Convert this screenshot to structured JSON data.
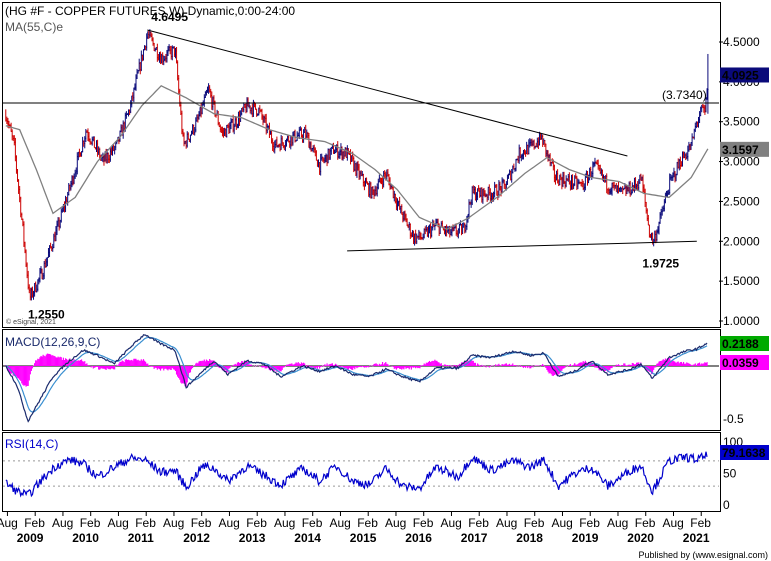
{
  "chart_data": [
    {
      "type": "line",
      "title": "(HG #F - COPPER FUTURES,W) Dynamic,0:00-24:00",
      "moving_average_label": "MA(55,C)e",
      "watermark": "© eSignal, 2021",
      "ylim": [
        0.95,
        4.95
      ],
      "y_ticks": [
        "4.5000",
        "4.0000",
        "3.5000",
        "3.0000",
        "2.5000",
        "2.0000",
        "1.5000",
        "1.0000"
      ],
      "y_tick_values": [
        4.5,
        4.0,
        3.5,
        3.0,
        2.5,
        2.0,
        1.5,
        1.0
      ],
      "last_price_label": "4.0925",
      "last_price": 4.0925,
      "ma_last_label": "3.1597",
      "ma_last": 3.1597,
      "horizontal_level_label": "(3.7340)",
      "horizontal_level": 3.734,
      "annotations": [
        {
          "text": "4.6495",
          "x": 2011.1,
          "y": 4.6495
        },
        {
          "text": "1.2550",
          "x": 2008.95,
          "y": 1.255
        },
        {
          "text": "1.9725",
          "x": 2020.2,
          "y": 1.9725
        }
      ],
      "trendlines": [
        {
          "name": "descending",
          "points": [
            [
              2011.1,
              4.65
            ],
            [
              2019.75,
              3.07
            ]
          ]
        },
        {
          "name": "support",
          "points": [
            [
              2014.7,
              1.88
            ],
            [
              2021.0,
              2.0
            ]
          ]
        }
      ],
      "price_anchors": [
        [
          2008.55,
          3.6
        ],
        [
          2008.7,
          3.2
        ],
        [
          2008.85,
          2.2
        ],
        [
          2008.98,
          1.28
        ],
        [
          2009.2,
          1.6
        ],
        [
          2009.5,
          2.2
        ],
        [
          2009.8,
          2.9
        ],
        [
          2010.0,
          3.4
        ],
        [
          2010.3,
          3.0
        ],
        [
          2010.55,
          3.2
        ],
        [
          2010.8,
          3.7
        ],
        [
          2011.1,
          4.6
        ],
        [
          2011.35,
          4.3
        ],
        [
          2011.6,
          4.4
        ],
        [
          2011.75,
          3.2
        ],
        [
          2012.0,
          3.5
        ],
        [
          2012.2,
          3.9
        ],
        [
          2012.45,
          3.35
        ],
        [
          2012.7,
          3.5
        ],
        [
          2012.9,
          3.7
        ],
        [
          2013.1,
          3.65
        ],
        [
          2013.4,
          3.2
        ],
        [
          2013.7,
          3.3
        ],
        [
          2013.95,
          3.35
        ],
        [
          2014.2,
          2.95
        ],
        [
          2014.45,
          3.15
        ],
        [
          2014.7,
          3.1
        ],
        [
          2014.95,
          2.8
        ],
        [
          2015.15,
          2.6
        ],
        [
          2015.4,
          2.85
        ],
        [
          2015.65,
          2.4
        ],
        [
          2015.9,
          2.05
        ],
        [
          2016.05,
          2.05
        ],
        [
          2016.3,
          2.2
        ],
        [
          2016.55,
          2.1
        ],
        [
          2016.8,
          2.15
        ],
        [
          2016.95,
          2.6
        ],
        [
          2017.3,
          2.6
        ],
        [
          2017.55,
          2.7
        ],
        [
          2017.8,
          3.1
        ],
        [
          2018.05,
          3.2
        ],
        [
          2018.2,
          3.3
        ],
        [
          2018.45,
          2.8
        ],
        [
          2018.7,
          2.75
        ],
        [
          2018.95,
          2.7
        ],
        [
          2019.15,
          2.95
        ],
        [
          2019.4,
          2.7
        ],
        [
          2019.65,
          2.6
        ],
        [
          2019.9,
          2.7
        ],
        [
          2020.0,
          2.8
        ],
        [
          2020.15,
          2.1
        ],
        [
          2020.22,
          2.0
        ],
        [
          2020.35,
          2.3
        ],
        [
          2020.5,
          2.7
        ],
        [
          2020.7,
          3.0
        ],
        [
          2020.9,
          3.2
        ],
        [
          2021.0,
          3.5
        ],
        [
          2021.1,
          3.65
        ],
        [
          2021.15,
          3.6
        ],
        [
          2021.2,
          4.09
        ]
      ],
      "ma_anchors": [
        [
          2008.55,
          3.45
        ],
        [
          2008.8,
          3.4
        ],
        [
          2009.1,
          2.9
        ],
        [
          2009.4,
          2.35
        ],
        [
          2009.8,
          2.55
        ],
        [
          2010.2,
          3.0
        ],
        [
          2010.6,
          3.3
        ],
        [
          2011.0,
          3.7
        ],
        [
          2011.35,
          3.95
        ],
        [
          2011.8,
          3.8
        ],
        [
          2012.3,
          3.6
        ],
        [
          2012.8,
          3.55
        ],
        [
          2013.3,
          3.4
        ],
        [
          2013.8,
          3.3
        ],
        [
          2014.3,
          3.25
        ],
        [
          2014.8,
          3.1
        ],
        [
          2015.2,
          2.9
        ],
        [
          2015.6,
          2.65
        ],
        [
          2016.0,
          2.3
        ],
        [
          2016.5,
          2.15
        ],
        [
          2016.9,
          2.3
        ],
        [
          2017.4,
          2.55
        ],
        [
          2017.9,
          2.85
        ],
        [
          2018.3,
          3.05
        ],
        [
          2018.7,
          2.9
        ],
        [
          2019.1,
          2.8
        ],
        [
          2019.6,
          2.75
        ],
        [
          2020.05,
          2.6
        ],
        [
          2020.5,
          2.55
        ],
        [
          2020.9,
          2.8
        ],
        [
          2021.2,
          3.16
        ]
      ]
    },
    {
      "type": "line",
      "title": "MACD(12,26,9,C)",
      "y_ticks": [
        "-0.5"
      ],
      "y_tick_values": [
        -0.5
      ],
      "macd_last_label": "0.2188",
      "macd_last": 0.2188,
      "histogram_last_label": "0.0359",
      "histogram_last": 0.0359,
      "macd_anchors": [
        [
          2008.55,
          0.0
        ],
        [
          2008.75,
          -0.18
        ],
        [
          2008.95,
          -0.52
        ],
        [
          2009.1,
          -0.38
        ],
        [
          2009.4,
          -0.1
        ],
        [
          2009.7,
          0.05
        ],
        [
          2009.95,
          0.15
        ],
        [
          2010.2,
          0.1
        ],
        [
          2010.5,
          0.02
        ],
        [
          2010.8,
          0.18
        ],
        [
          2011.05,
          0.3
        ],
        [
          2011.3,
          0.22
        ],
        [
          2011.6,
          0.15
        ],
        [
          2011.8,
          -0.2
        ],
        [
          2012.1,
          -0.05
        ],
        [
          2012.3,
          0.05
        ],
        [
          2012.55,
          -0.08
        ],
        [
          2012.9,
          0.05
        ],
        [
          2013.2,
          0.02
        ],
        [
          2013.5,
          -0.1
        ],
        [
          2013.9,
          0.0
        ],
        [
          2014.2,
          -0.05
        ],
        [
          2014.5,
          0.0
        ],
        [
          2014.8,
          -0.08
        ],
        [
          2015.1,
          -0.1
        ],
        [
          2015.4,
          -0.03
        ],
        [
          2015.7,
          -0.1
        ],
        [
          2016.0,
          -0.15
        ],
        [
          2016.3,
          -0.02
        ],
        [
          2016.7,
          -0.02
        ],
        [
          2016.95,
          0.1
        ],
        [
          2017.3,
          0.08
        ],
        [
          2017.7,
          0.14
        ],
        [
          2018.0,
          0.1
        ],
        [
          2018.25,
          0.12
        ],
        [
          2018.5,
          -0.1
        ],
        [
          2018.8,
          -0.05
        ],
        [
          2019.1,
          0.05
        ],
        [
          2019.4,
          -0.08
        ],
        [
          2019.8,
          -0.03
        ],
        [
          2020.0,
          0.02
        ],
        [
          2020.2,
          -0.12
        ],
        [
          2020.5,
          0.08
        ],
        [
          2020.8,
          0.14
        ],
        [
          2021.0,
          0.16
        ],
        [
          2021.2,
          0.22
        ]
      ]
    },
    {
      "type": "line",
      "title": "RSI(14,C)",
      "y_ticks": [
        "100",
        "50",
        "0"
      ],
      "y_tick_values": [
        100,
        50,
        0
      ],
      "rsi_last_label": "79.1638",
      "rsi_last": 79.1638,
      "rsi_anchors": [
        [
          2008.55,
          35
        ],
        [
          2008.75,
          22
        ],
        [
          2008.95,
          15
        ],
        [
          2009.2,
          40
        ],
        [
          2009.45,
          62
        ],
        [
          2009.7,
          72
        ],
        [
          2009.95,
          65
        ],
        [
          2010.2,
          45
        ],
        [
          2010.5,
          60
        ],
        [
          2010.8,
          74
        ],
        [
          2011.05,
          72
        ],
        [
          2011.35,
          52
        ],
        [
          2011.6,
          55
        ],
        [
          2011.8,
          28
        ],
        [
          2012.1,
          62
        ],
        [
          2012.3,
          58
        ],
        [
          2012.55,
          38
        ],
        [
          2012.9,
          62
        ],
        [
          2013.2,
          48
        ],
        [
          2013.5,
          32
        ],
        [
          2013.9,
          58
        ],
        [
          2014.2,
          38
        ],
        [
          2014.5,
          62
        ],
        [
          2014.8,
          38
        ],
        [
          2015.1,
          32
        ],
        [
          2015.4,
          58
        ],
        [
          2015.7,
          30
        ],
        [
          2016.0,
          26
        ],
        [
          2016.3,
          60
        ],
        [
          2016.7,
          45
        ],
        [
          2016.95,
          76
        ],
        [
          2017.3,
          55
        ],
        [
          2017.7,
          70
        ],
        [
          2018.0,
          60
        ],
        [
          2018.25,
          72
        ],
        [
          2018.5,
          30
        ],
        [
          2018.8,
          50
        ],
        [
          2019.1,
          60
        ],
        [
          2019.4,
          30
        ],
        [
          2019.8,
          55
        ],
        [
          2020.0,
          62
        ],
        [
          2020.2,
          22
        ],
        [
          2020.5,
          70
        ],
        [
          2020.8,
          76
        ],
        [
          2021.0,
          72
        ],
        [
          2021.2,
          79
        ]
      ]
    }
  ],
  "x_axis": {
    "months": [
      "Aug",
      "Feb",
      "Aug",
      "Feb",
      "Aug",
      "Feb",
      "Aug",
      "Feb",
      "Aug",
      "Feb",
      "Aug",
      "Feb",
      "Aug",
      "Feb",
      "Aug",
      "Feb",
      "Aug",
      "Feb",
      "Aug",
      "Feb",
      "Aug",
      "Feb",
      "Aug",
      "Feb",
      "Aug",
      "Feb"
    ],
    "years": [
      "2009",
      "2010",
      "2011",
      "2012",
      "2013",
      "2014",
      "2015",
      "2016",
      "2017",
      "2018",
      "2019",
      "2020",
      "2021"
    ],
    "xlim": [
      2008.5,
      2021.4
    ]
  },
  "footer": "Published by (www.esignal.com)",
  "colors": {
    "price_up": "#0a0a7a",
    "price_down": "#cc0000",
    "moving_average": "#808080",
    "macd_line": "#1a2a6c",
    "signal_line": "#3a8fd0",
    "histogram": "#ff00ff",
    "rsi_line": "#0000cc",
    "price_box": "#0a0a7a",
    "ma_box": "#808080",
    "macd_box": "#00aa00",
    "hist_box": "#ff00ff",
    "rsi_box": "#0000cc"
  }
}
